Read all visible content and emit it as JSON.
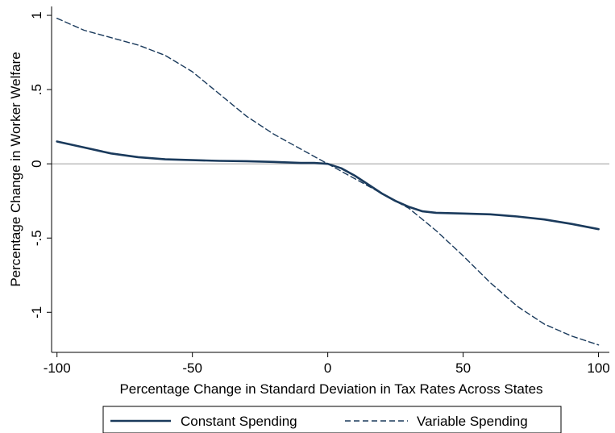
{
  "chart_data": {
    "type": "line",
    "title": "",
    "xlabel": "Percentage Change in Standard Deviation in Tax Rates Across States",
    "ylabel": "Percentage Change in Worker Welfare",
    "xlim": [
      -102,
      104
    ],
    "ylim": [
      -1.27,
      1.06
    ],
    "x_ticks": [
      -100,
      -50,
      0,
      50,
      100
    ],
    "x_tick_labels": [
      "-100",
      "-50",
      "0",
      "50",
      "100"
    ],
    "y_ticks": [
      -1,
      -0.5,
      0,
      0.5,
      1
    ],
    "y_tick_labels": [
      "-1",
      "-.5",
      "0",
      ".5",
      "1"
    ],
    "reference_line_y": 0,
    "grid": false,
    "legend_position": "bottom",
    "series": [
      {
        "name": "Constant Spending",
        "style": "solid",
        "color": "#1a3a5c",
        "x": [
          -100,
          -90,
          -80,
          -70,
          -60,
          -50,
          -40,
          -30,
          -20,
          -10,
          -5,
          0,
          5,
          10,
          15,
          20,
          25,
          30,
          35,
          40,
          50,
          60,
          70,
          80,
          90,
          100
        ],
        "y": [
          0.15,
          0.11,
          0.07,
          0.045,
          0.03,
          0.025,
          0.02,
          0.018,
          0.013,
          0.006,
          0.006,
          0.0,
          -0.03,
          -0.08,
          -0.14,
          -0.2,
          -0.25,
          -0.29,
          -0.32,
          -0.33,
          -0.335,
          -0.34,
          -0.355,
          -0.375,
          -0.405,
          -0.44
        ]
      },
      {
        "name": "Variable Spending",
        "style": "dashed",
        "color": "#1a3a5c",
        "x": [
          -100,
          -90,
          -80,
          -70,
          -60,
          -50,
          -40,
          -30,
          -20,
          -10,
          0,
          10,
          20,
          30,
          40,
          50,
          60,
          70,
          80,
          90,
          100
        ],
        "y": [
          0.98,
          0.9,
          0.85,
          0.8,
          0.73,
          0.62,
          0.47,
          0.32,
          0.2,
          0.1,
          0.0,
          -0.1,
          -0.2,
          -0.3,
          -0.45,
          -0.62,
          -0.8,
          -0.96,
          -1.08,
          -1.16,
          -1.22
        ]
      }
    ]
  }
}
